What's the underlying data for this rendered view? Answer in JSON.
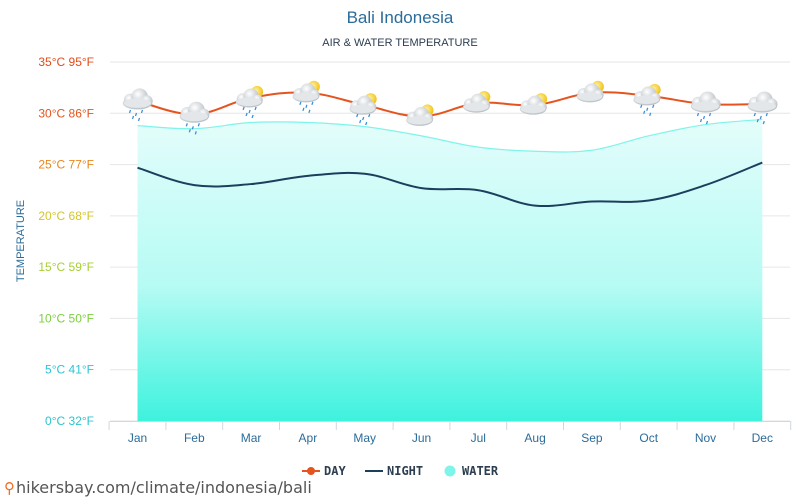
{
  "chart_data": {
    "type": "line",
    "title": "Bali Indonesia",
    "subtitle": "AIR & WATER TEMPERATURE",
    "ylabel": "TEMPERATURE",
    "xlabel": "",
    "categories": [
      "Jan",
      "Feb",
      "Mar",
      "Apr",
      "May",
      "Jun",
      "Jul",
      "Aug",
      "Sep",
      "Oct",
      "Nov",
      "Dec"
    ],
    "ylim": [
      0,
      35
    ],
    "yticks": [
      {
        "value": 0,
        "label": "0°C 32°F",
        "color": "#2ec4c9"
      },
      {
        "value": 5,
        "label": "5°C 41°F",
        "color": "#29c6d8"
      },
      {
        "value": 10,
        "label": "10°C 50°F",
        "color": "#7ccf3f"
      },
      {
        "value": 15,
        "label": "15°C 59°F",
        "color": "#a6cf32"
      },
      {
        "value": 20,
        "label": "20°C 68°F",
        "color": "#d3c52a"
      },
      {
        "value": 25,
        "label": "25°C 77°F",
        "color": "#e8861f"
      },
      {
        "value": 30,
        "label": "30°C 86°F",
        "color": "#e5541e"
      },
      {
        "value": 35,
        "label": "35°C 95°F",
        "color": "#e24a1b"
      }
    ],
    "series": [
      {
        "name": "DAY",
        "color": "#e5541e",
        "values": [
          31.2,
          29.9,
          31.5,
          32.0,
          30.8,
          29.7,
          31.0,
          30.8,
          32.0,
          31.7,
          30.9,
          30.9
        ]
      },
      {
        "name": "NIGHT",
        "color": "#1c3f5e",
        "values": [
          24.7,
          23.0,
          23.1,
          23.9,
          24.1,
          22.7,
          22.5,
          21.0,
          21.4,
          21.5,
          23.0,
          25.2
        ]
      },
      {
        "name": "WATER",
        "color": "#7ff4e8",
        "values": [
          28.8,
          28.5,
          29.1,
          29.1,
          28.7,
          27.8,
          26.7,
          26.3,
          26.4,
          27.8,
          28.9,
          29.4
        ]
      }
    ],
    "weather_icons": [
      "cloud-rain-icon",
      "cloud-rain-icon",
      "sun-cloud-rain-icon",
      "sun-cloud-rain-icon",
      "sun-cloud-rain-icon",
      "sun-cloud-icon",
      "sun-cloud-icon",
      "sun-cloud-icon",
      "sun-cloud-icon",
      "sun-cloud-rain-icon",
      "cloud-rain-icon",
      "cloud-rain-icon"
    ],
    "legend_position": "bottom-center",
    "grid": true
  },
  "footer": {
    "text": "hikersbay.com/climate/indonesia/bali"
  },
  "colors": {
    "title": "#2b6c99",
    "subtitle": "#2c3e50",
    "axis_label": "#2b6c99",
    "grid": "#e6e6e6"
  }
}
